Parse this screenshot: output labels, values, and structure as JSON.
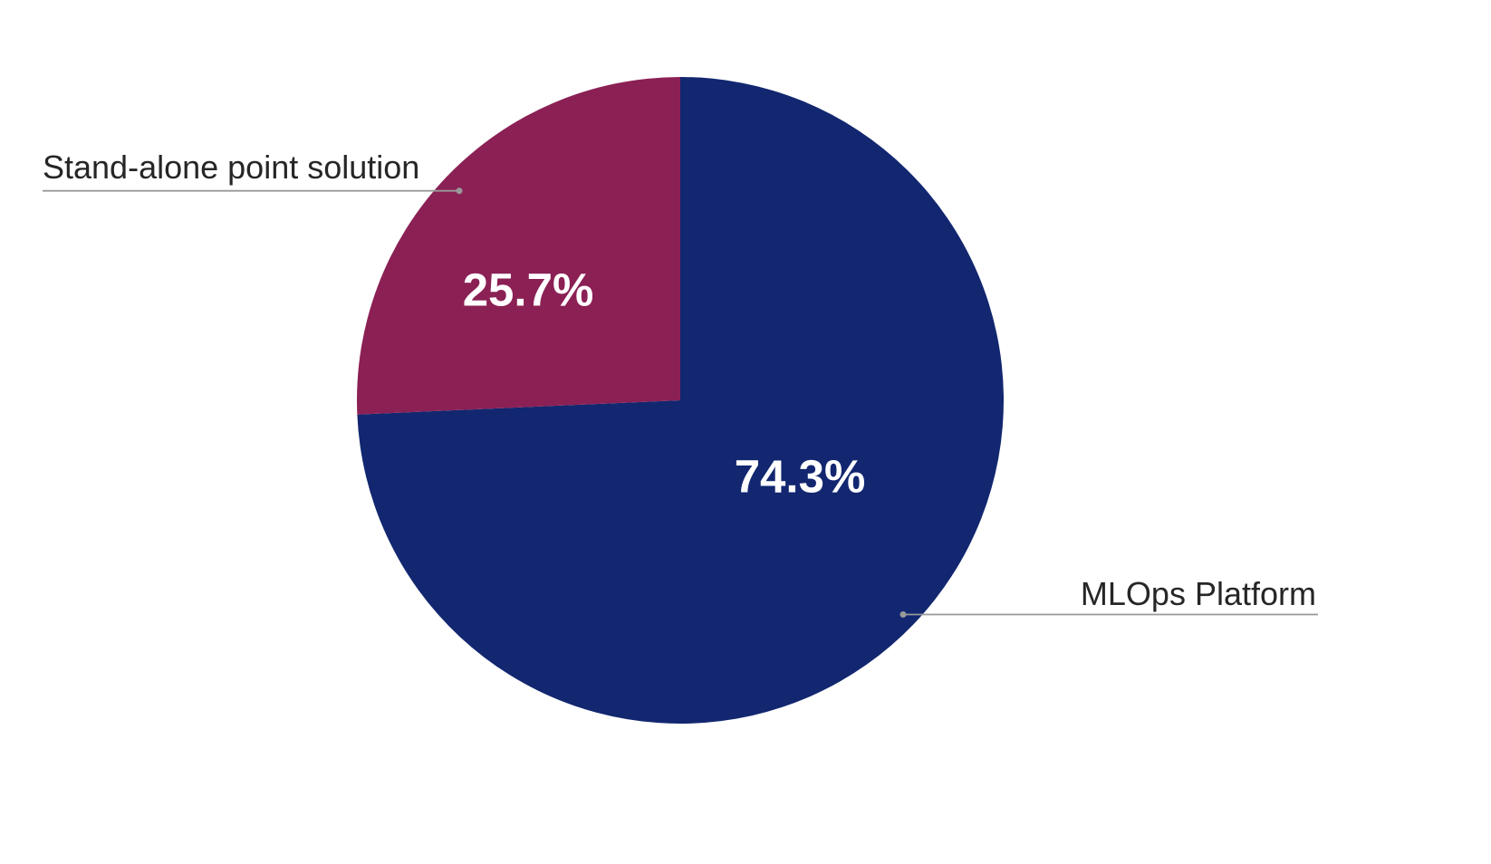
{
  "chart_data": {
    "type": "pie",
    "labels": [
      "MLOps Platform",
      "Stand-alone point solution"
    ],
    "values": [
      74.3,
      25.7
    ],
    "percent_labels": [
      "74.3%",
      "25.7%"
    ],
    "colors": [
      "#122770",
      "#8b2055"
    ],
    "start_angle_deg": 90,
    "direction": "clockwise",
    "legend_position": "none",
    "background": "#ffffff",
    "label_text_color": "#262626",
    "leader_line_color": "#999999",
    "percent_label_color": "#ffffff"
  }
}
